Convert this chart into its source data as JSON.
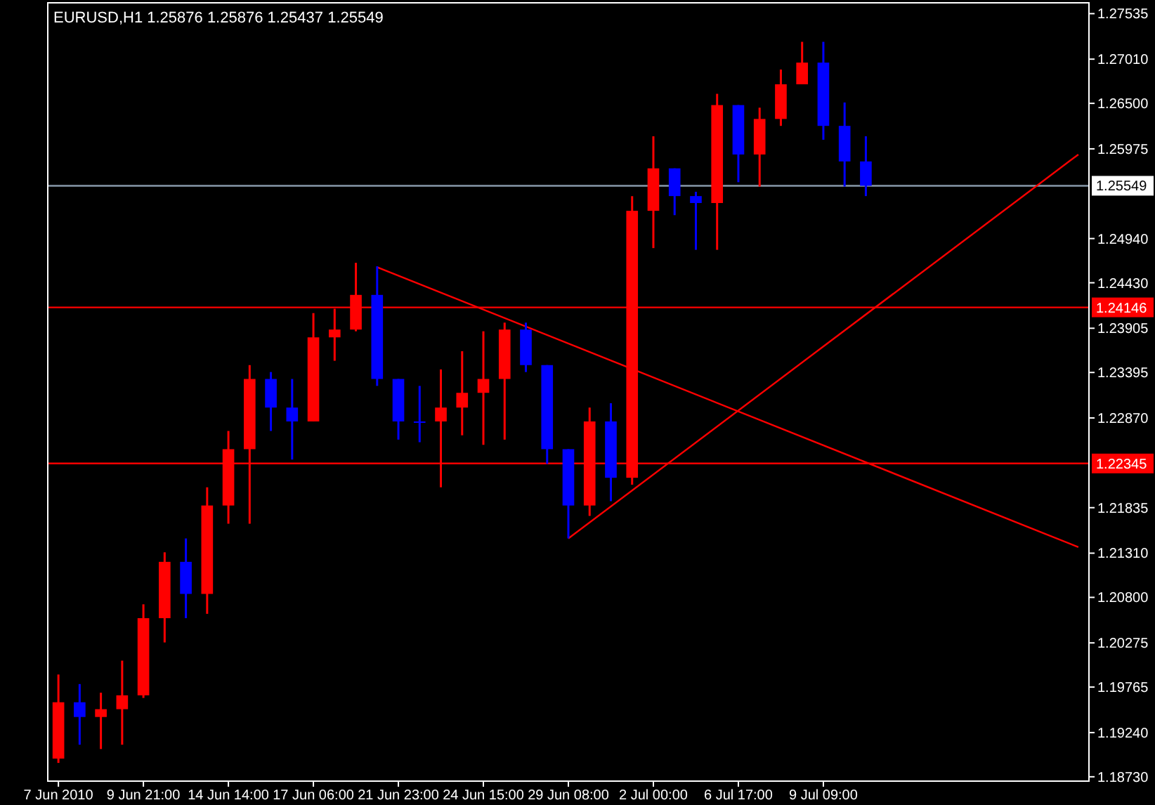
{
  "chart_data": {
    "type": "candlestick",
    "title": "EURUSD,H1  1.25876 1.25876 1.25437 1.25549",
    "categories": [
      "7 Jun 2010",
      null,
      null,
      null,
      "9 Jun 21:00",
      null,
      null,
      null,
      "14 Jun 14:00",
      null,
      null,
      null,
      "17 Jun 06:00",
      null,
      null,
      null,
      "21 Jun 23:00",
      null,
      null,
      null,
      "24 Jun 15:00",
      null,
      null,
      null,
      "29 Jun 08:00",
      null,
      null,
      null,
      "2 Jul 00:00",
      null,
      null,
      null,
      "6 Jul 17:00",
      null,
      null,
      null,
      "9 Jul 09:00",
      null,
      null,
      null,
      null,
      null,
      null,
      null,
      null,
      null,
      null,
      null,
      null
    ],
    "ohlc": [
      [
        1.1894,
        1.1991,
        1.1889,
        1.1959
      ],
      [
        1.1959,
        1.198,
        1.191,
        1.1942
      ],
      [
        1.1942,
        1.197,
        1.1905,
        1.1951
      ],
      [
        1.1951,
        1.2007,
        1.191,
        1.1967
      ],
      [
        1.1967,
        1.2072,
        1.1964,
        1.2056
      ],
      [
        1.2056,
        1.2132,
        1.2028,
        1.2121
      ],
      [
        1.2121,
        1.2148,
        1.2056,
        1.2084
      ],
      [
        1.2084,
        1.2207,
        1.2061,
        1.2186
      ],
      [
        1.2186,
        1.2272,
        1.2165,
        1.2251
      ],
      [
        1.2251,
        1.2348,
        1.2165,
        1.2332
      ],
      [
        1.2332,
        1.234,
        1.2272,
        1.2299
      ],
      [
        1.2299,
        1.2332,
        1.2239,
        1.2283
      ],
      [
        1.2283,
        1.2408,
        1.2283,
        1.238
      ],
      [
        1.238,
        1.2413,
        1.2353,
        1.2389
      ],
      [
        1.2389,
        1.2466,
        1.2387,
        1.2429
      ],
      [
        1.2429,
        1.2462,
        1.2324,
        1.2332
      ],
      [
        1.2332,
        1.2332,
        1.2262,
        1.2283
      ],
      [
        1.2283,
        1.2324,
        1.2259,
        1.2283
      ],
      [
        1.2283,
        1.2343,
        1.2207,
        1.2299
      ],
      [
        1.2299,
        1.2364,
        1.2267,
        1.2316
      ],
      [
        1.2316,
        1.2387,
        1.2256,
        1.2332
      ],
      [
        1.2332,
        1.2397,
        1.2262,
        1.2389
      ],
      [
        1.2389,
        1.2397,
        1.234,
        1.2348
      ],
      [
        1.2348,
        1.2348,
        1.2234,
        1.2251
      ],
      [
        1.2251,
        1.2251,
        1.2148,
        1.2186
      ],
      [
        1.2186,
        1.2299,
        1.2174,
        1.2283
      ],
      [
        1.2283,
        1.2304,
        1.2191,
        1.2218
      ],
      [
        1.2218,
        1.2543,
        1.221,
        1.2526
      ],
      [
        1.2526,
        1.2612,
        1.2483,
        1.2575
      ],
      [
        1.2575,
        1.2575,
        1.2521,
        1.2543
      ],
      [
        1.2543,
        1.2548,
        1.2481,
        1.2535
      ],
      [
        1.2535,
        1.2661,
        1.2481,
        1.2648
      ],
      [
        1.2648,
        1.2648,
        1.2559,
        1.2591
      ],
      [
        1.2591,
        1.2645,
        1.2554,
        1.2632
      ],
      [
        1.2632,
        1.2689,
        1.2624,
        1.2672
      ],
      [
        1.2672,
        1.2721,
        1.2672,
        1.2697
      ],
      [
        1.2697,
        1.2721,
        1.2608,
        1.2624
      ],
      [
        1.2624,
        1.2651,
        1.2554,
        1.2583
      ],
      [
        1.2583,
        1.2612,
        1.2543,
        1.25549
      ],
      null,
      null,
      null,
      null,
      null,
      null,
      null,
      null,
      null,
      null
    ],
    "colors": [
      "#ff0000",
      "#0000ff",
      "#ff0000",
      "#ff0000",
      "#ff0000",
      "#ff0000",
      "#0000ff",
      "#ff0000",
      "#ff0000",
      "#ff0000",
      "#0000ff",
      "#0000ff",
      "#ff0000",
      "#ff0000",
      "#ff0000",
      "#0000ff",
      "#0000ff",
      "#0000ff",
      "#ff0000",
      "#ff0000",
      "#ff0000",
      "#ff0000",
      "#0000ff",
      "#0000ff",
      "#0000ff",
      "#ff0000",
      "#0000ff",
      "#ff0000",
      "#ff0000",
      "#0000ff",
      "#0000ff",
      "#ff0000",
      "#0000ff",
      "#ff0000",
      "#ff0000",
      "#ff0000",
      "#0000ff",
      "#0000ff",
      "#0000ff",
      null,
      null,
      null,
      null,
      null,
      null,
      null,
      null,
      null,
      null
    ],
    "series": [
      {
        "type": "line",
        "color": "#ff0000",
        "values": [
          null,
          null,
          null,
          null,
          null,
          null,
          null,
          null,
          null,
          null,
          null,
          null,
          null,
          null,
          null,
          1.2461,
          null,
          null,
          null,
          null,
          null,
          null,
          null,
          null,
          null,
          null,
          null,
          null,
          null,
          null,
          null,
          null,
          null,
          null,
          null,
          null,
          null,
          null,
          null,
          null,
          null,
          null,
          null,
          null,
          null,
          null,
          null,
          null,
          1.2138
        ]
      },
      {
        "type": "line",
        "color": "#ff0000",
        "values": [
          null,
          null,
          null,
          null,
          null,
          null,
          null,
          null,
          null,
          null,
          null,
          null,
          null,
          null,
          null,
          null,
          null,
          null,
          null,
          null,
          null,
          null,
          null,
          null,
          1.2148,
          null,
          null,
          null,
          null,
          null,
          null,
          null,
          null,
          null,
          null,
          null,
          null,
          null,
          null,
          null,
          null,
          null,
          null,
          null,
          null,
          null,
          null,
          null,
          1.2591
        ]
      }
    ],
    "ylim": [
      1.1868,
      1.2766
    ],
    "yticks": [
      {
        "value": 1.1873,
        "label": "1.18730"
      },
      {
        "value": 1.1924,
        "label": "1.19240"
      },
      {
        "value": 1.19765,
        "label": "1.19765"
      },
      {
        "value": 1.20275,
        "label": "1.20275"
      },
      {
        "value": 1.208,
        "label": "1.20800"
      },
      {
        "value": 1.2131,
        "label": "1.21310"
      },
      {
        "value": 1.21835,
        "label": "1.21835"
      },
      {
        "value": 1.2287,
        "label": "1.22870"
      },
      {
        "value": 1.23395,
        "label": "1.23395"
      },
      {
        "value": 1.23905,
        "label": "1.23905"
      },
      {
        "value": 1.2443,
        "label": "1.24430"
      },
      {
        "value": 1.2494,
        "label": "1.24940"
      },
      {
        "value": 1.25975,
        "label": "1.25975"
      },
      {
        "value": 1.265,
        "label": "1.26500"
      },
      {
        "value": 1.2701,
        "label": "1.27010"
      },
      {
        "value": 1.27535,
        "label": "1.27535"
      }
    ],
    "ref_lines": [
      {
        "axis": "y",
        "value": 1.25549,
        "label": "1.25549",
        "color": "#8899aa"
      },
      {
        "axis": "y",
        "value": 1.24146,
        "label": "1.24146",
        "color": "#ff0000"
      },
      {
        "axis": "y",
        "value": 1.22345,
        "label": "1.22345",
        "color": "#ff0000"
      }
    ],
    "grid": false
  }
}
